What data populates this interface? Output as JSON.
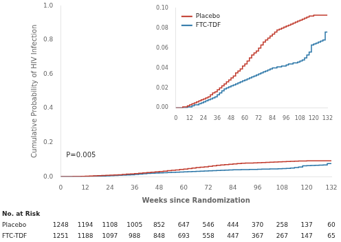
{
  "chart_data": [
    {
      "type": "step",
      "x_label": "Weeks since Randomization",
      "y_label": "Cumulative Probability of HIV Infection",
      "annotations": [
        "P=0.005"
      ],
      "x": [
        0,
        2,
        4,
        6,
        8,
        10,
        12,
        14,
        16,
        18,
        20,
        22,
        24,
        26,
        28,
        30,
        32,
        34,
        36,
        38,
        40,
        42,
        44,
        46,
        48,
        50,
        52,
        54,
        56,
        58,
        60,
        62,
        64,
        66,
        68,
        70,
        72,
        74,
        76,
        78,
        80,
        82,
        84,
        86,
        88,
        90,
        92,
        94,
        96,
        98,
        100,
        102,
        104,
        106,
        108,
        110,
        112,
        114,
        116,
        118,
        120,
        122,
        124,
        126,
        128,
        130,
        132
      ],
      "series": [
        {
          "color": "#c0392b",
          "values": [
            0.0,
            0.0,
            0.0,
            0.0,
            0.001,
            0.001,
            0.002,
            0.003,
            0.004,
            0.005,
            0.006,
            0.007,
            0.008,
            0.009,
            0.01,
            0.011,
            0.013,
            0.015,
            0.016,
            0.018,
            0.02,
            0.022,
            0.024,
            0.026,
            0.028,
            0.03,
            0.032,
            0.035,
            0.037,
            0.039,
            0.042,
            0.044,
            0.047,
            0.05,
            0.053,
            0.055,
            0.057,
            0.06,
            0.063,
            0.066,
            0.068,
            0.07,
            0.072,
            0.074,
            0.076,
            0.078,
            0.079,
            0.08,
            0.081,
            0.082,
            0.083,
            0.084,
            0.085,
            0.086,
            0.087,
            0.088,
            0.089,
            0.09,
            0.091,
            0.092,
            0.092,
            0.093,
            0.093,
            0.093,
            0.093,
            0.093,
            0.093
          ]
        },
        {
          "color": "#2874a6",
          "values": [
            0.0,
            0.0,
            0.0,
            0.0,
            0.0,
            0.0,
            0.001,
            0.001,
            0.002,
            0.003,
            0.003,
            0.004,
            0.005,
            0.006,
            0.007,
            0.008,
            0.009,
            0.01,
            0.011,
            0.013,
            0.015,
            0.017,
            0.019,
            0.02,
            0.021,
            0.022,
            0.023,
            0.024,
            0.025,
            0.026,
            0.027,
            0.028,
            0.029,
            0.03,
            0.031,
            0.032,
            0.033,
            0.034,
            0.035,
            0.036,
            0.037,
            0.038,
            0.039,
            0.04,
            0.04,
            0.041,
            0.041,
            0.042,
            0.042,
            0.043,
            0.044,
            0.044,
            0.045,
            0.045,
            0.046,
            0.047,
            0.048,
            0.05,
            0.053,
            0.056,
            0.063,
            0.064,
            0.065,
            0.066,
            0.067,
            0.068,
            0.076
          ]
        }
      ],
      "xlim": [
        0,
        132
      ],
      "xticks": [
        0,
        12,
        24,
        36,
        48,
        60,
        72,
        84,
        96,
        108,
        120,
        132
      ],
      "ylim": [
        0,
        1.0
      ],
      "yticks": [
        {
          "value": 0.0,
          "label": "0.0"
        },
        0.2,
        0.4,
        0.6,
        0.8,
        {
          "value": 1.0,
          "label": "1.0"
        }
      ],
      "grid": false,
      "risk_table": {
        "title": "No. at Risk",
        "x": [
          0,
          12,
          24,
          36,
          48,
          60,
          72,
          84,
          96,
          108,
          120,
          132
        ],
        "rows": [
          {
            "name": "Placebo",
            "values": [
              1248,
              1194,
              1108,
              1005,
              852,
              647,
              546,
              444,
              370,
              258,
              137,
              60
            ]
          },
          {
            "name": "FTC-TDF",
            "values": [
              1251,
              1188,
              1097,
              988,
              848,
              693,
              558,
              447,
              367,
              267,
              147,
              65
            ]
          }
        ]
      }
    },
    {
      "type": "step",
      "x": [
        0,
        2,
        4,
        6,
        8,
        10,
        12,
        14,
        16,
        18,
        20,
        22,
        24,
        26,
        28,
        30,
        32,
        34,
        36,
        38,
        40,
        42,
        44,
        46,
        48,
        50,
        52,
        54,
        56,
        58,
        60,
        62,
        64,
        66,
        68,
        70,
        72,
        74,
        76,
        78,
        80,
        82,
        84,
        86,
        88,
        90,
        92,
        94,
        96,
        98,
        100,
        102,
        104,
        106,
        108,
        110,
        112,
        114,
        116,
        118,
        120,
        122,
        124,
        126,
        128,
        130,
        132
      ],
      "series": [
        {
          "name": "Placebo",
          "color": "#c0392b",
          "values": [
            0.0,
            0.0,
            0.0,
            0.0,
            0.001,
            0.001,
            0.002,
            0.003,
            0.004,
            0.005,
            0.006,
            0.007,
            0.008,
            0.009,
            0.01,
            0.011,
            0.013,
            0.015,
            0.016,
            0.018,
            0.02,
            0.022,
            0.024,
            0.026,
            0.028,
            0.03,
            0.032,
            0.035,
            0.037,
            0.039,
            0.042,
            0.044,
            0.047,
            0.05,
            0.053,
            0.055,
            0.057,
            0.06,
            0.063,
            0.066,
            0.068,
            0.07,
            0.072,
            0.074,
            0.076,
            0.078,
            0.079,
            0.08,
            0.081,
            0.082,
            0.083,
            0.084,
            0.085,
            0.086,
            0.087,
            0.088,
            0.089,
            0.09,
            0.091,
            0.092,
            0.092,
            0.093,
            0.093,
            0.093,
            0.093,
            0.093,
            0.093
          ]
        },
        {
          "name": "FTC-TDF",
          "color": "#2874a6",
          "values": [
            0.0,
            0.0,
            0.0,
            0.0,
            0.0,
            0.0,
            0.001,
            0.001,
            0.002,
            0.003,
            0.003,
            0.004,
            0.005,
            0.006,
            0.007,
            0.008,
            0.009,
            0.01,
            0.011,
            0.013,
            0.015,
            0.017,
            0.019,
            0.02,
            0.021,
            0.022,
            0.023,
            0.024,
            0.025,
            0.026,
            0.027,
            0.028,
            0.029,
            0.03,
            0.031,
            0.032,
            0.033,
            0.034,
            0.035,
            0.036,
            0.037,
            0.038,
            0.039,
            0.04,
            0.04,
            0.041,
            0.041,
            0.042,
            0.042,
            0.043,
            0.044,
            0.044,
            0.045,
            0.045,
            0.046,
            0.047,
            0.048,
            0.05,
            0.053,
            0.056,
            0.063,
            0.064,
            0.065,
            0.066,
            0.067,
            0.068,
            0.076
          ]
        }
      ],
      "xlim": [
        0,
        132
      ],
      "xticks": [
        0,
        12,
        24,
        36,
        48,
        60,
        72,
        84,
        96,
        108,
        120,
        132
      ],
      "ylim": [
        0,
        0.1
      ],
      "yticks": [
        {
          "value": 0.0,
          "label": "0.00"
        },
        {
          "value": 0.02,
          "label": "0.02"
        },
        {
          "value": 0.04,
          "label": "0.04"
        },
        {
          "value": 0.06,
          "label": "0.06"
        },
        {
          "value": 0.08,
          "label": "0.08"
        },
        {
          "value": 0.1,
          "label": "0.10"
        }
      ],
      "grid": false,
      "legend": "upper left"
    }
  ]
}
